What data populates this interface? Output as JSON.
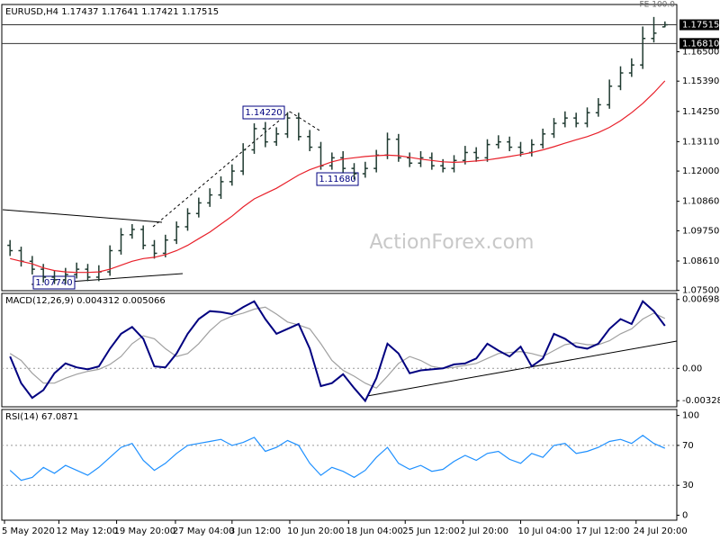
{
  "chart_data": [
    {
      "type": "ohlc",
      "title": "EURUSD,H4 1.17437 1.17641 1.17421 1.17515",
      "color": "#1f3a30",
      "xlim": [
        0,
        60
      ],
      "ylim": [
        1.0749,
        1.1828
      ],
      "yticks": [
        {
          "value": 1.165,
          "label": "1.16500"
        },
        {
          "value": 1.1539,
          "label": "1.15390"
        },
        {
          "value": 1.1425,
          "label": "1.14250"
        },
        {
          "value": 1.1311,
          "label": "1.13110"
        },
        {
          "value": 1.12,
          "label": "1.12000"
        },
        {
          "value": 1.1086,
          "label": "1.10860"
        },
        {
          "value": 1.0975,
          "label": "1.09750"
        },
        {
          "value": 1.0861,
          "label": "1.08610"
        },
        {
          "value": 1.075,
          "label": "1.07500"
        }
      ],
      "hlines": [
        {
          "value": 1.17515,
          "label": "1.17515"
        },
        {
          "value": 1.1681,
          "label": "1.16810"
        }
      ],
      "annotations": [
        "1.14220",
        "1.11680",
        "1.07740"
      ],
      "fe_label": "FE 100.0",
      "watermark": "ActionForex.com",
      "open": [
        1.092,
        1.09,
        1.086,
        1.083,
        1.08,
        1.079,
        1.081,
        1.083,
        1.08,
        1.082,
        1.09,
        1.096,
        1.098,
        1.092,
        1.089,
        1.094,
        1.099,
        1.104,
        1.108,
        1.111,
        1.116,
        1.12,
        1.128,
        1.136,
        1.131,
        1.134,
        1.14,
        1.133,
        1.129,
        1.122,
        1.125,
        1.121,
        1.119,
        1.121,
        1.126,
        1.132,
        1.125,
        1.123,
        1.125,
        1.122,
        1.121,
        1.124,
        1.127,
        1.125,
        1.13,
        1.131,
        1.129,
        1.127,
        1.13,
        1.134,
        1.138,
        1.14,
        1.138,
        1.142,
        1.145,
        1.152,
        1.157,
        1.16,
        1.17,
        1.17437
      ],
      "high": [
        1.094,
        1.0915,
        1.088,
        1.085,
        1.0825,
        1.0835,
        1.0855,
        1.085,
        1.0845,
        1.092,
        1.0985,
        1.1,
        1.0995,
        1.094,
        1.096,
        1.101,
        1.106,
        1.11,
        1.1135,
        1.118,
        1.1225,
        1.1305,
        1.138,
        1.1385,
        1.1365,
        1.1422,
        1.142,
        1.1355,
        1.131,
        1.127,
        1.1275,
        1.123,
        1.1235,
        1.128,
        1.1345,
        1.134,
        1.127,
        1.1275,
        1.127,
        1.1245,
        1.126,
        1.1295,
        1.129,
        1.132,
        1.1335,
        1.133,
        1.131,
        1.132,
        1.136,
        1.14,
        1.1425,
        1.142,
        1.144,
        1.1475,
        1.1545,
        1.1595,
        1.1625,
        1.1745,
        1.1781,
        1.17641
      ],
      "low": [
        1.088,
        1.084,
        1.081,
        1.078,
        1.0774,
        1.0775,
        1.0795,
        1.0785,
        1.0785,
        1.0805,
        1.0885,
        1.0945,
        1.0905,
        1.087,
        1.0875,
        1.0925,
        1.0975,
        1.1025,
        1.1065,
        1.1095,
        1.1145,
        1.1185,
        1.1265,
        1.129,
        1.1295,
        1.1325,
        1.1315,
        1.1275,
        1.1205,
        1.1205,
        1.1195,
        1.1168,
        1.1175,
        1.1195,
        1.1245,
        1.1235,
        1.1215,
        1.1215,
        1.1205,
        1.1195,
        1.1195,
        1.1225,
        1.1235,
        1.1235,
        1.1285,
        1.1275,
        1.1255,
        1.1255,
        1.1285,
        1.1325,
        1.1365,
        1.1365,
        1.1365,
        1.1405,
        1.1435,
        1.1505,
        1.1555,
        1.1585,
        1.1685,
        1.17421
      ],
      "close": [
        1.09,
        1.086,
        1.083,
        1.08,
        1.079,
        1.081,
        1.083,
        1.08,
        1.082,
        1.09,
        1.096,
        1.098,
        1.092,
        1.089,
        1.094,
        1.099,
        1.104,
        1.108,
        1.111,
        1.116,
        1.12,
        1.128,
        1.136,
        1.131,
        1.134,
        1.14,
        1.133,
        1.129,
        1.122,
        1.125,
        1.121,
        1.119,
        1.121,
        1.126,
        1.132,
        1.125,
        1.123,
        1.125,
        1.122,
        1.121,
        1.124,
        1.127,
        1.125,
        1.13,
        1.131,
        1.129,
        1.127,
        1.13,
        1.134,
        1.138,
        1.14,
        1.138,
        1.142,
        1.145,
        1.152,
        1.157,
        1.16,
        1.17,
        1.172,
        1.17515
      ],
      "series": [
        {
          "color": "#e8202a",
          "values": [
            1.087,
            1.086,
            1.085,
            1.0835,
            1.0825,
            1.082,
            1.0818,
            1.0818,
            1.082,
            1.083,
            1.0845,
            1.086,
            1.087,
            1.0875,
            1.0885,
            1.09,
            1.092,
            1.0945,
            1.097,
            1.1,
            1.103,
            1.1065,
            1.1095,
            1.1115,
            1.1135,
            1.116,
            1.1185,
            1.1205,
            1.122,
            1.1235,
            1.1245,
            1.125,
            1.1255,
            1.1258,
            1.126,
            1.1258,
            1.1252,
            1.1245,
            1.124,
            1.1235,
            1.1233,
            1.1235,
            1.1238,
            1.1242,
            1.1248,
            1.1255,
            1.1262,
            1.127,
            1.128,
            1.1292,
            1.1305,
            1.1318,
            1.133,
            1.1345,
            1.1365,
            1.139,
            1.142,
            1.1455,
            1.1495,
            1.154
          ]
        }
      ]
    },
    {
      "type": "line",
      "title": "MACD(12,26,9) 0.004312 0.005066",
      "xlim": [
        0,
        60
      ],
      "ylim": [
        -0.0039,
        0.0076
      ],
      "yticks": [
        0.006984,
        {
          "value": 0,
          "label": "0.00"
        },
        -0.00328
      ],
      "hlines": [
        0
      ],
      "series": [
        {
          "color": "#a0a0a0",
          "values": [
            0.0015,
            0.0008,
            -0.0005,
            -0.0015,
            -0.0015,
            -0.001,
            -0.0006,
            -0.0003,
            -0.0001,
            0.0004,
            0.0012,
            0.0025,
            0.0033,
            0.003,
            0.002,
            0.0012,
            0.0015,
            0.0025,
            0.0038,
            0.0048,
            0.0053,
            0.0056,
            0.006,
            0.0062,
            0.0055,
            0.0047,
            0.0044,
            0.004,
            0.0025,
            0.0008,
            -0.0002,
            -0.0008,
            -0.0015,
            -0.002,
            -0.0008,
            0.0005,
            0.0012,
            0.0008,
            0.0002,
            0.0,
            0.0001,
            0.0003,
            0.0005,
            0.001,
            0.0015,
            0.0016,
            0.0017,
            0.0015,
            0.0012,
            0.0018,
            0.0024,
            0.0026,
            0.0024,
            0.0024,
            0.0028,
            0.0035,
            0.004,
            0.005,
            0.0056,
            0.005066
          ]
        },
        {
          "color": "#000080",
          "values": [
            0.0012,
            -0.0015,
            -0.003,
            -0.0022,
            -0.0005,
            0.0005,
            0.0001,
            -0.0001,
            0.0002,
            0.002,
            0.0035,
            0.0042,
            0.003,
            0.0002,
            0.0001,
            0.0015,
            0.0035,
            0.005,
            0.0058,
            0.0057,
            0.0055,
            0.0062,
            0.0068,
            0.005,
            0.0035,
            0.004,
            0.0045,
            0.002,
            -0.0018,
            -0.0015,
            -0.0006,
            -0.002,
            -0.0033,
            -0.001,
            0.0025,
            0.0015,
            -0.0005,
            -0.0002,
            -0.0001,
            0.0,
            0.0004,
            0.0005,
            0.001,
            0.0025,
            0.0018,
            0.0012,
            0.0022,
            0.0002,
            0.001,
            0.0035,
            0.003,
            0.0022,
            0.002,
            0.0025,
            0.004,
            0.005,
            0.0045,
            0.0068,
            0.0058,
            0.004312
          ]
        }
      ]
    },
    {
      "type": "line",
      "title": "RSI(14) 67.0871",
      "xlim": [
        0,
        60
      ],
      "ylim": [
        -5,
        106
      ],
      "yticks": [
        100,
        70,
        30,
        0
      ],
      "hlines": [
        70,
        30
      ],
      "xticks": [
        {
          "value": 0,
          "label": "5 May 2020"
        },
        {
          "value": 4.9,
          "label": "12 May 12:00"
        },
        {
          "value": 10.1,
          "label": "19 May 20:00"
        },
        {
          "value": 15.4,
          "label": "27 May 04:00"
        },
        {
          "value": 20.5,
          "label": "3 Jun 12:00"
        },
        {
          "value": 25.7,
          "label": "10 Jun 20:00"
        },
        {
          "value": 31.0,
          "label": "18 Jun 04:00"
        },
        {
          "value": 36.1,
          "label": "25 Jun 12:00"
        },
        {
          "value": 41.3,
          "label": "2 Jul 20:00"
        },
        {
          "value": 46.5,
          "label": "10 Jul 04:00"
        },
        {
          "value": 51.7,
          "label": "17 Jul 12:00"
        },
        {
          "value": 56.9,
          "label": "24 Jul 20:00"
        }
      ],
      "series": [
        {
          "color": "#1e90ff",
          "values": [
            45,
            35,
            38,
            48,
            42,
            50,
            45,
            40,
            48,
            58,
            68,
            72,
            55,
            45,
            52,
            62,
            70,
            72,
            74,
            76,
            70,
            73,
            78,
            64,
            68,
            75,
            70,
            52,
            40,
            48,
            44,
            38,
            45,
            58,
            68,
            52,
            46,
            50,
            44,
            46,
            54,
            60,
            55,
            62,
            64,
            56,
            52,
            62,
            58,
            70,
            72,
            62,
            64,
            68,
            74,
            76,
            72,
            80,
            72,
            67.0871
          ]
        }
      ]
    }
  ]
}
